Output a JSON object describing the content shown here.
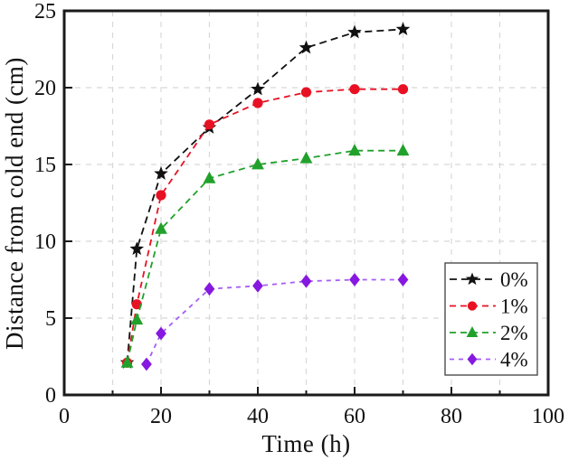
{
  "figure": {
    "background": "#ffffff",
    "frame_color": "#1a1a1a",
    "grid_color": "#d8d8d8",
    "text_color": "#111111"
  },
  "chart_data": {
    "type": "line",
    "title": "",
    "xlabel": "Time (h)",
    "ylabel": "Distance from cold end (cm)",
    "xlim": [
      0,
      100
    ],
    "ylim": [
      0,
      25
    ],
    "x_major_ticks": [
      0,
      20,
      40,
      60,
      80,
      100
    ],
    "x_minor_ticks": [
      10,
      30,
      50,
      70,
      90
    ],
    "y_major_ticks": [
      0,
      5,
      10,
      15,
      20,
      25
    ],
    "grid": "dashed light-gray, vertical every 10 h, horizontal every 5 cm",
    "legend_position": "right-center-inside",
    "series": [
      {
        "name": "0%",
        "marker": "star",
        "color": "#111111",
        "line_color": "#111111",
        "line_style": "dashed",
        "x": [
          13,
          15,
          20,
          30,
          40,
          50,
          60,
          70
        ],
        "y": [
          2.1,
          9.5,
          14.4,
          17.4,
          19.9,
          22.6,
          23.6,
          23.8
        ]
      },
      {
        "name": "1%",
        "marker": "circle",
        "color": "#e81123",
        "line_color": "#e81123",
        "line_style": "dashed",
        "x": [
          13,
          15,
          20,
          30,
          40,
          50,
          60,
          70
        ],
        "y": [
          2.1,
          5.9,
          13.0,
          17.6,
          19.0,
          19.7,
          19.9,
          19.9
        ]
      },
      {
        "name": "2%",
        "marker": "triangle",
        "color": "#21a12b",
        "line_color": "#21a12b",
        "line_style": "dashed",
        "x": [
          13,
          15,
          20,
          30,
          40,
          50,
          60,
          70
        ],
        "y": [
          2.1,
          4.9,
          10.8,
          14.1,
          15.0,
          15.4,
          15.9,
          15.9
        ]
      },
      {
        "name": "4%",
        "marker": "diamond",
        "color": "#8618e0",
        "line_color": "#a55ef5",
        "line_style": "dashed",
        "x": [
          17,
          20,
          30,
          40,
          50,
          60,
          70
        ],
        "y": [
          2.0,
          4.0,
          6.9,
          7.1,
          7.4,
          7.5,
          7.5
        ]
      }
    ]
  }
}
